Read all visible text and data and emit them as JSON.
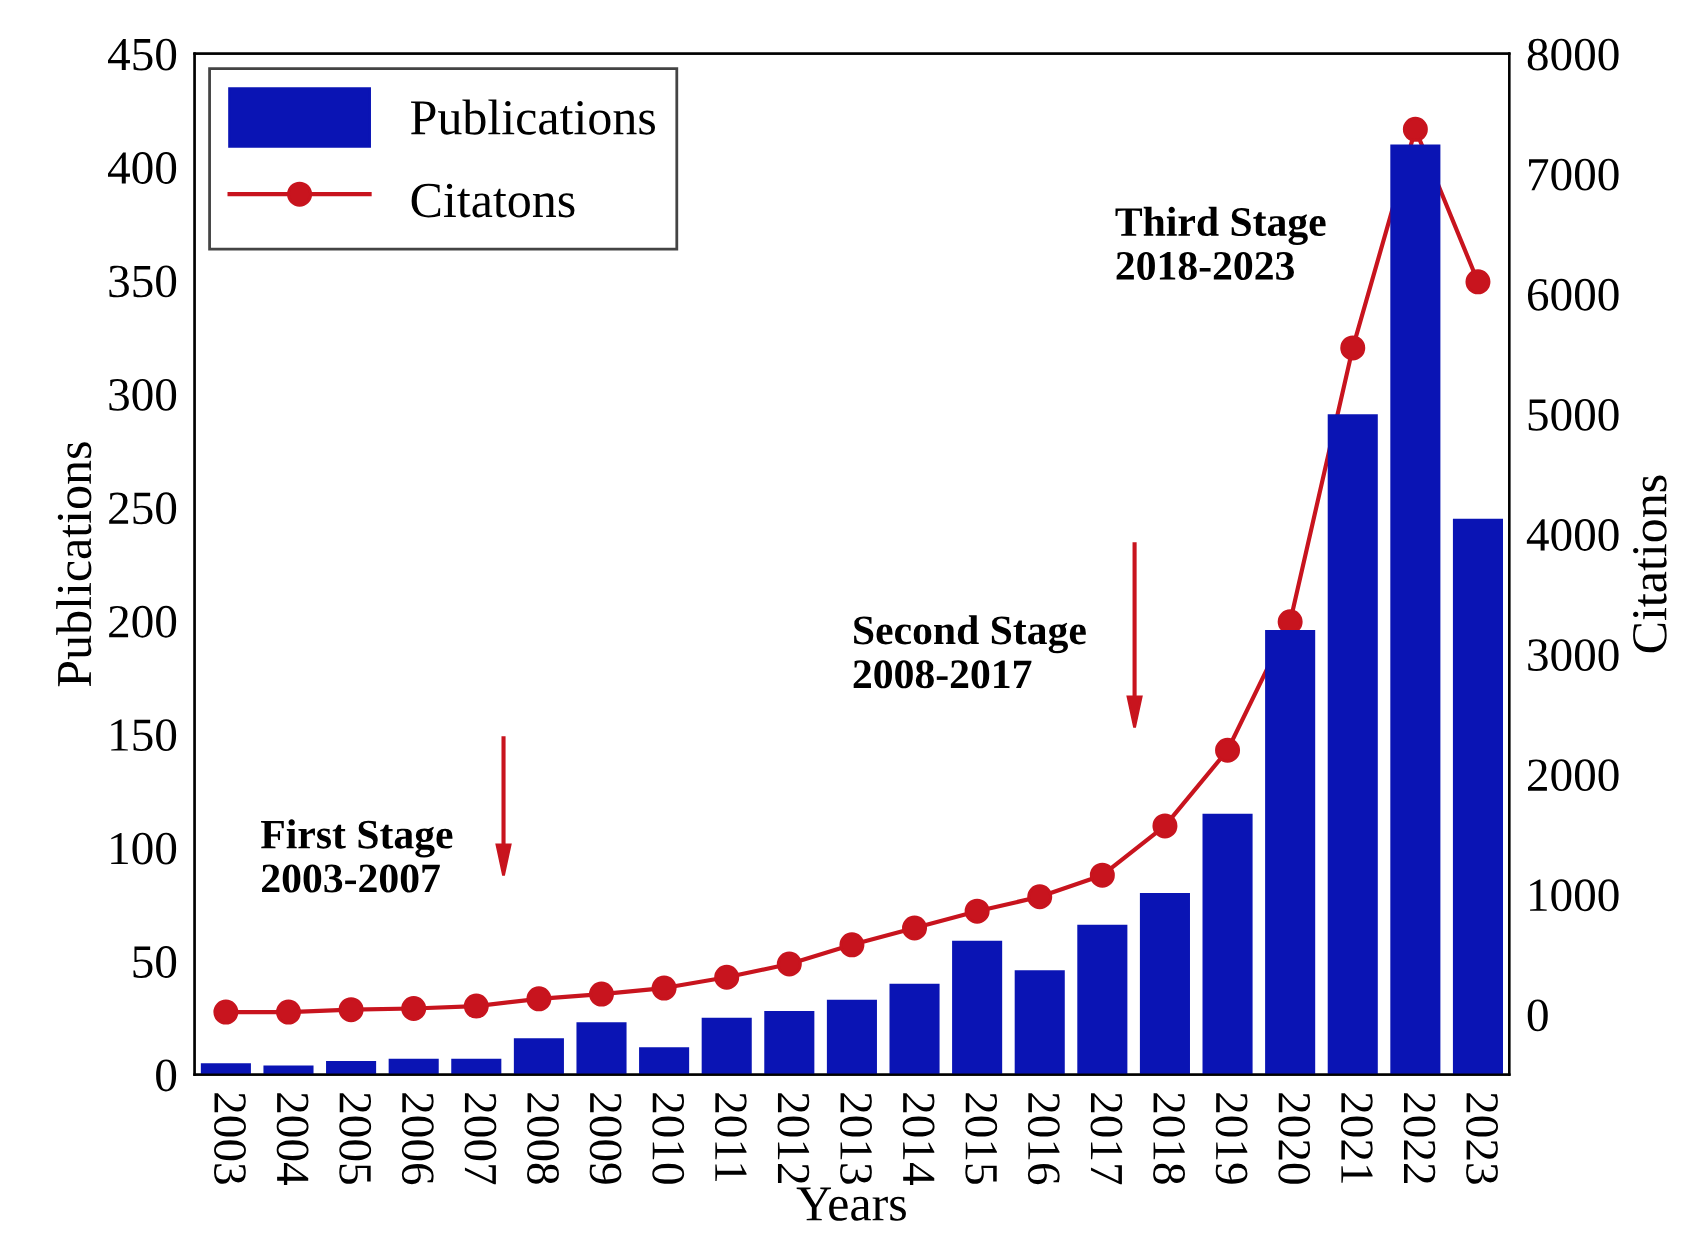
{
  "chart_data": {
    "type": "bar",
    "xlabel": "Years",
    "ylabel": "Publications",
    "y2label": "Citations",
    "categories": [
      "2003",
      "2004",
      "2005",
      "2006",
      "2007",
      "2008",
      "2009",
      "2010",
      "2011",
      "2012",
      "2013",
      "2014",
      "2015",
      "2016",
      "2017",
      "2018",
      "2019",
      "2020",
      "2021",
      "2022",
      "2023"
    ],
    "series": [
      {
        "name": "Publications",
        "color": "#0a14b4",
        "values": [
          5,
          4,
          6,
          7,
          7,
          16,
          23,
          12,
          25,
          28,
          33,
          40,
          59,
          46,
          66,
          80,
          115,
          196,
          291,
          410,
          245
        ]
      },
      {
        "name": "Citatons",
        "type": "line",
        "axis": "y2",
        "color": "#c8141e",
        "marker": "circle",
        "values": [
          20,
          20,
          40,
          50,
          70,
          130,
          170,
          220,
          310,
          420,
          580,
          720,
          860,
          980,
          1160,
          1570,
          2200,
          3270,
          5550,
          7370,
          6100
        ]
      }
    ],
    "ylim": [
      0,
      450
    ],
    "yticks": [
      0,
      50,
      100,
      150,
      200,
      250,
      300,
      350,
      400,
      450
    ],
    "y2lim": [
      -500,
      8000
    ],
    "y2ticks": [
      0,
      1000,
      2000,
      3000,
      4000,
      5000,
      6000,
      7000,
      8000
    ],
    "legend": "top left",
    "grid": false,
    "annotations": [
      "First Stage\n2003-2007",
      "Second Stage\n2008-2017",
      "Third Stage\n2018-2023"
    ]
  }
}
